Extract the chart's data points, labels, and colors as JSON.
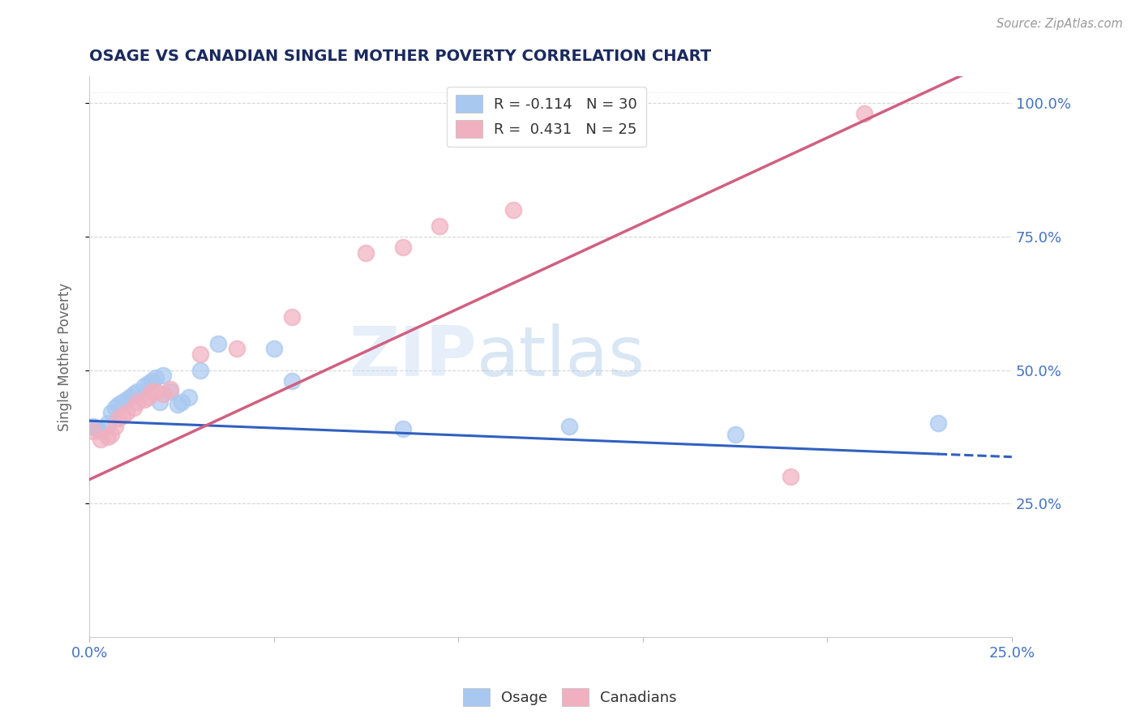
{
  "title": "OSAGE VS CANADIAN SINGLE MOTHER POVERTY CORRELATION CHART",
  "source": "Source: ZipAtlas.com",
  "ylabel": "Single Mother Poverty",
  "watermark": "ZIPatlas",
  "legend_blue_label": "R = -0.114   N = 30",
  "legend_pink_label": "R =  0.431   N = 25",
  "xmin": 0.0,
  "xmax": 0.25,
  "ymin": 0.0,
  "ymax": 1.05,
  "blue_color": "#a8c8f0",
  "pink_color": "#f0b0c0",
  "blue_line_color": "#3060c0",
  "pink_line_color": "#d06080",
  "background_color": "#ffffff",
  "grid_color": "#cccccc",
  "osage_x": [
    0.001,
    0.002,
    0.003,
    0.005,
    0.006,
    0.007,
    0.008,
    0.009,
    0.01,
    0.011,
    0.012,
    0.013,
    0.015,
    0.016,
    0.017,
    0.018,
    0.019,
    0.02,
    0.022,
    0.024,
    0.025,
    0.027,
    0.03,
    0.035,
    0.05,
    0.055,
    0.085,
    0.13,
    0.175,
    0.23
  ],
  "osage_y": [
    0.395,
    0.39,
    0.385,
    0.4,
    0.42,
    0.43,
    0.435,
    0.44,
    0.445,
    0.45,
    0.455,
    0.46,
    0.47,
    0.475,
    0.48,
    0.485,
    0.44,
    0.49,
    0.46,
    0.435,
    0.44,
    0.45,
    0.5,
    0.55,
    0.54,
    0.48,
    0.39,
    0.395,
    0.38,
    0.4
  ],
  "canadian_x": [
    0.001,
    0.003,
    0.005,
    0.006,
    0.007,
    0.008,
    0.009,
    0.01,
    0.012,
    0.013,
    0.015,
    0.016,
    0.017,
    0.018,
    0.02,
    0.022,
    0.03,
    0.04,
    0.055,
    0.075,
    0.085,
    0.095,
    0.115,
    0.19,
    0.21
  ],
  "canadian_y": [
    0.385,
    0.37,
    0.375,
    0.38,
    0.395,
    0.41,
    0.415,
    0.42,
    0.43,
    0.44,
    0.445,
    0.45,
    0.46,
    0.46,
    0.455,
    0.465,
    0.53,
    0.54,
    0.6,
    0.72,
    0.73,
    0.77,
    0.8,
    0.3,
    0.98
  ],
  "blue_intercept": 0.405,
  "blue_slope": -0.27,
  "pink_intercept": 0.295,
  "pink_slope": 3.2
}
